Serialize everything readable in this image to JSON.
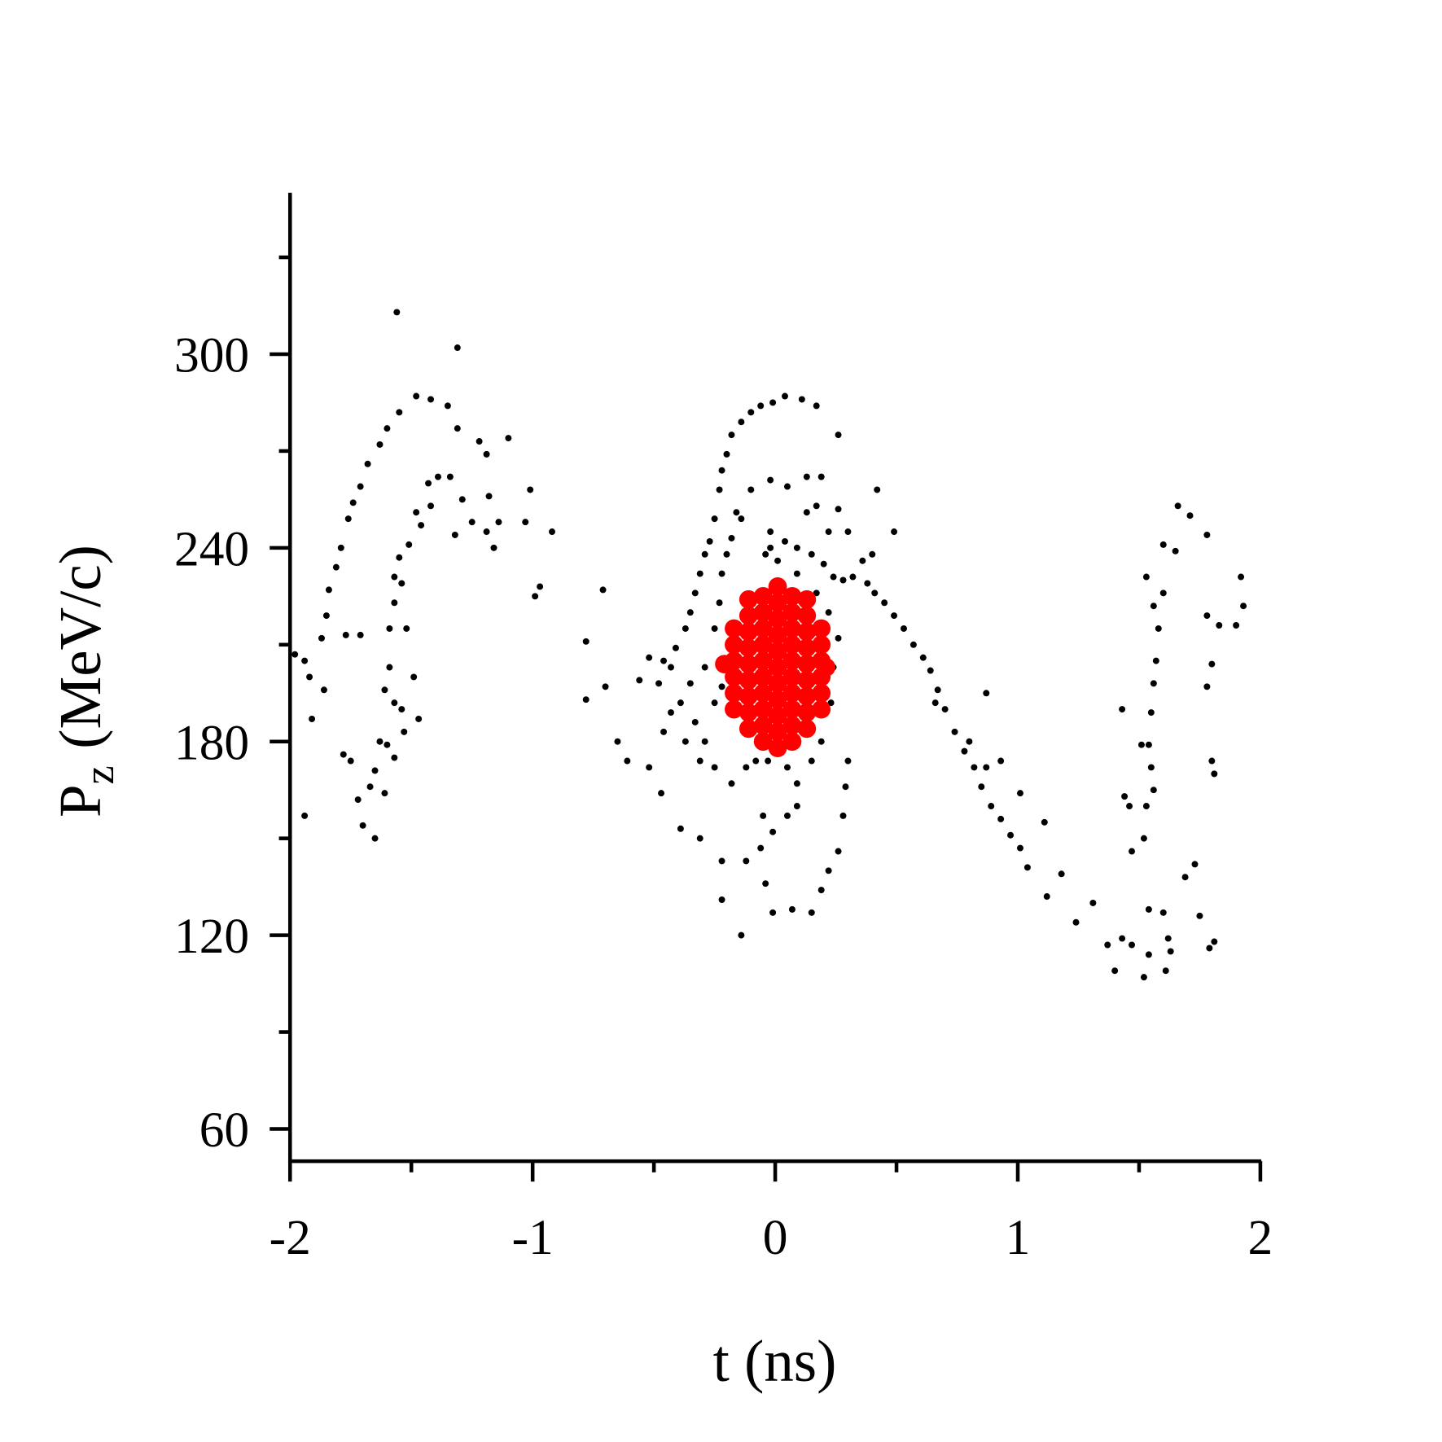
{
  "chart_data": {
    "type": "scatter",
    "xlabel": "t (ns)",
    "ylabel": {
      "main": "P",
      "sub": "z",
      "unit": "(MeV/c)"
    },
    "xlim": [
      -2,
      2
    ],
    "ylim": [
      50,
      350
    ],
    "xticks": [
      -2,
      -1,
      0,
      1,
      2
    ],
    "yticks": [
      60,
      120,
      180,
      240,
      300
    ],
    "xminorticks": [
      -1.5,
      -0.5,
      0.5,
      1.5
    ],
    "yminorticks": [
      90,
      150,
      210,
      270,
      330
    ],
    "series": [
      {
        "color": "#000000",
        "x": [
          -1.56,
          -1.31,
          -1.48,
          -1.42,
          -1.35,
          -1.55,
          -1.6,
          -1.31,
          -1.63,
          -1.22,
          -1.1,
          -1.19,
          -1.68,
          -1.34,
          -1.39,
          -1.43,
          -1.01,
          -1.71,
          -1.74,
          -1.29,
          -1.18,
          -1.42,
          -1.76,
          -1.48,
          -1.46,
          -1.25,
          -1.14,
          -1.03,
          -0.92,
          -1.19,
          -1.32,
          -1.51,
          -1.79,
          -1.16,
          -1.55,
          -1.81,
          -1.57,
          -1.84,
          -0.97,
          -0.99,
          -1.57,
          -1.85,
          -1.87,
          -1.77,
          -1.59,
          -1.71,
          -1.98,
          -1.94,
          -1.92,
          -1.86,
          -1.59,
          -1.61,
          -1.57,
          -1.47,
          -1.91,
          -1.63,
          -1.6,
          -1.57,
          -1.78,
          -1.75,
          -1.65,
          -1.67,
          -1.72,
          -1.61,
          -1.94,
          -1.7,
          -1.65,
          -1.53,
          -1.54,
          -1.49,
          -1.52,
          -1.54,
          -0.52,
          -0.46,
          -0.56,
          -0.48,
          -0.43,
          -0.41,
          -0.37,
          -0.35,
          -0.33,
          -0.31,
          -0.29,
          -0.27,
          -0.25,
          -0.23,
          -0.22,
          -0.2,
          -0.18,
          -0.14,
          -0.1,
          -0.06,
          -0.01,
          0.04,
          0.11,
          0.17,
          0.26,
          -0.39,
          -0.33,
          -0.29,
          -0.25,
          -0.22,
          -0.29,
          -0.35,
          -0.25,
          -0.23,
          -0.22,
          -0.2,
          -0.18,
          -0.14,
          -0.43,
          -0.46,
          -0.37,
          -0.31,
          -0.25,
          -0.18,
          -0.12,
          -0.08,
          -0.03,
          0.05,
          0.09,
          0.15,
          0.19,
          0.23,
          0.24,
          0.26,
          0.22,
          0.17,
          0.09,
          0.01,
          -0.04,
          -0.02,
          0.04,
          0.09,
          0.15,
          0.2,
          0.24,
          0.28,
          0.32,
          0.38,
          0.41,
          0.45,
          0.49,
          0.53,
          0.57,
          0.61,
          0.64,
          0.67,
          0.7,
          0.74,
          0.78,
          0.82,
          0.85,
          0.89,
          0.93,
          0.97,
          1.01,
          1.04,
          1.11,
          1.18,
          1.12,
          1.24,
          1.31,
          0.87,
          0.93,
          1.01,
          0.8,
          0.87,
          0.66,
          0.4,
          0.49,
          0.42,
          0.26,
          0.17,
          0.13,
          0.05,
          0.13,
          0.19,
          -0.02,
          -0.1,
          -0.16,
          -0.02,
          0.3,
          0.36,
          0.22,
          -0.71,
          -0.78,
          -0.7,
          -0.78,
          -0.65,
          -0.61,
          -0.52,
          -0.47,
          -0.39,
          -0.31,
          -0.22,
          -0.12,
          -0.06,
          -0.01,
          0.05,
          0.09,
          -0.05,
          -0.22,
          -0.14,
          -0.01,
          0.07,
          0.15,
          0.19,
          0.22,
          0.26,
          0.28,
          0.29,
          0.3,
          -0.04,
          1.66,
          1.71,
          1.78,
          1.6,
          1.65,
          1.6,
          1.56,
          1.58,
          1.53,
          1.92,
          1.93,
          1.9,
          1.83,
          1.78,
          1.8,
          1.78,
          1.57,
          1.56,
          1.43,
          1.55,
          1.54,
          1.51,
          1.55,
          1.8,
          1.81,
          1.44,
          1.46,
          1.53,
          1.56,
          1.52,
          1.47,
          1.69,
          1.73,
          1.54,
          1.6,
          1.75,
          1.81,
          1.79,
          1.37,
          1.43,
          1.47,
          1.52,
          1.4,
          1.61,
          1.54,
          1.62,
          1.63
        ],
        "y": [
          313,
          302,
          287,
          286,
          284,
          282,
          277,
          277,
          272,
          273,
          274,
          269,
          266,
          262,
          262,
          260,
          258,
          259,
          254,
          255,
          256,
          253,
          249,
          251,
          247,
          248,
          248,
          248,
          245,
          245,
          244,
          241,
          240,
          240,
          237,
          234,
          231,
          227,
          228,
          225,
          223,
          219,
          212,
          213,
          215,
          213,
          207,
          205,
          200,
          196,
          203,
          196,
          192,
          187,
          187,
          180,
          179,
          175,
          176,
          174,
          171,
          166,
          162,
          164,
          157,
          154,
          150,
          183,
          190,
          200,
          215,
          229,
          206,
          205,
          199,
          198,
          203,
          209,
          215,
          220,
          226,
          232,
          238,
          242,
          249,
          258,
          264,
          269,
          275,
          279,
          282,
          284,
          285,
          287,
          286,
          284,
          275,
          192,
          186,
          180,
          192,
          197,
          203,
          198,
          215,
          223,
          232,
          238,
          243,
          249,
          189,
          183,
          180,
          174,
          172,
          167,
          172,
          174,
          174,
          172,
          167,
          174,
          180,
          192,
          203,
          212,
          220,
          226,
          232,
          236,
          238,
          240,
          242,
          240,
          238,
          235,
          231,
          230,
          231,
          229,
          226,
          223,
          219,
          215,
          210,
          206,
          202,
          196,
          190,
          183,
          177,
          172,
          166,
          160,
          156,
          151,
          147,
          141,
          155,
          139,
          132,
          124,
          130,
          195,
          174,
          164,
          180,
          172,
          192,
          238,
          245,
          258,
          252,
          253,
          251,
          259,
          262,
          262,
          261,
          258,
          251,
          245,
          245,
          236,
          245,
          227,
          211,
          197,
          193,
          180,
          174,
          172,
          164,
          153,
          150,
          143,
          143,
          147,
          152,
          157,
          160,
          157,
          131,
          120,
          127,
          128,
          127,
          134,
          140,
          146,
          157,
          166,
          174,
          136,
          253,
          250,
          244,
          241,
          239,
          226,
          222,
          215,
          231,
          231,
          222,
          216,
          216,
          219,
          204,
          197,
          205,
          198,
          190,
          189,
          179,
          179,
          172,
          174,
          170,
          163,
          160,
          160,
          165,
          150,
          146,
          138,
          142,
          128,
          127,
          126,
          118,
          116,
          117,
          119,
          117,
          107,
          109,
          109,
          114,
          119,
          115
        ]
      },
      {
        "color": "#ff0000",
        "x": [
          0.01,
          0.01,
          0.01,
          0.01,
          0.01,
          0.01,
          0.01,
          0.01,
          0.01,
          0.01,
          0.01,
          -0.05,
          -0.05,
          -0.05,
          -0.05,
          -0.05,
          -0.05,
          -0.05,
          -0.05,
          -0.05,
          -0.05,
          0.07,
          0.07,
          0.07,
          0.07,
          0.07,
          0.07,
          0.07,
          0.07,
          0.07,
          0.07,
          -0.11,
          -0.11,
          -0.11,
          -0.11,
          -0.11,
          -0.11,
          -0.11,
          -0.11,
          -0.11,
          0.13,
          0.13,
          0.13,
          0.13,
          0.13,
          0.13,
          0.13,
          0.13,
          0.13,
          -0.17,
          -0.17,
          -0.17,
          -0.17,
          -0.17,
          -0.17,
          0.19,
          0.19,
          0.19,
          0.19,
          0.19,
          0.19,
          -0.21,
          0.21
        ],
        "y": [
          178,
          183,
          188,
          193,
          198,
          203,
          208,
          213,
          218,
          223,
          228,
          180,
          185,
          190,
          195,
          200,
          205,
          210,
          215,
          220,
          225,
          180,
          185,
          190,
          195,
          200,
          205,
          210,
          215,
          220,
          225,
          184,
          189,
          194,
          199,
          204,
          209,
          214,
          219,
          224,
          184,
          189,
          194,
          199,
          204,
          209,
          214,
          219,
          224,
          190,
          195,
          200,
          205,
          210,
          215,
          190,
          195,
          200,
          205,
          210,
          215,
          204,
          203
        ]
      }
    ]
  }
}
